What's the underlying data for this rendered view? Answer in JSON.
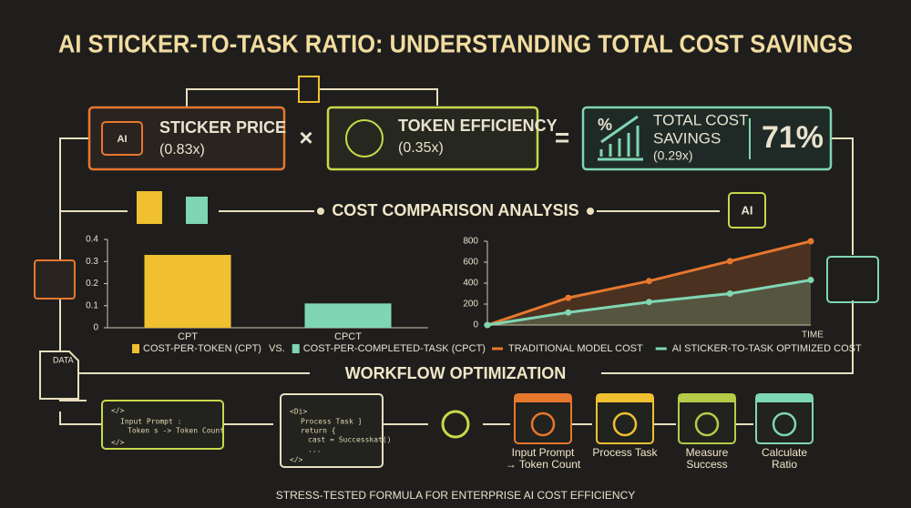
{
  "title": "AI STICKER-TO-TASK RATIO: UNDERSTANDING TOTAL COST SAVINGS",
  "formula": {
    "sticker": {
      "icon": "AI",
      "label": "STICKER PRICE",
      "value": "(0.83x)"
    },
    "operator1": "×",
    "token": {
      "label": "TOKEN EFFICIENCY",
      "value": "(0.35x)"
    },
    "operator2": "=",
    "total": {
      "icon": "%",
      "label_lines": [
        "TOTAL COST",
        "SAVINGS"
      ],
      "value": "(0.29x)",
      "percent": "71%"
    }
  },
  "sections": {
    "analysis": "COST COMPARISON ANALYSIS",
    "workflow": "WORKFLOW OPTIMIZATION"
  },
  "side_icons": {
    "chip": "AI",
    "data_doc": "DATA"
  },
  "chart_data": [
    {
      "type": "bar",
      "categories": [
        "CPT",
        "CPCT"
      ],
      "series": [
        {
          "name": "COST-PER-TOKEN (CPT)",
          "color": "#f0c030",
          "values": [
            0.33,
            null
          ]
        },
        {
          "name": "COST-PER-COMPLETED-TASK (CPCT)",
          "color": "#7fd6b4",
          "values": [
            null,
            0.11
          ]
        }
      ],
      "legend_separator": "VS.",
      "ylim": [
        0,
        0.4
      ],
      "yticks": [
        0,
        0.1,
        0.2,
        0.3,
        0.4
      ]
    },
    {
      "type": "line",
      "categories": [
        null,
        null,
        null,
        null,
        null
      ],
      "xlabel": "TIME",
      "series": [
        {
          "name": "TRADITIONAL MODEL COST",
          "color": "#e8772e",
          "values": [
            0,
            260,
            420,
            610,
            800
          ]
        },
        {
          "name": "AI STICKER-TO-TASK OPTIMIZED COST",
          "color": "#7fd6b4",
          "values": [
            0,
            120,
            220,
            300,
            430
          ]
        }
      ],
      "ylim": [
        0,
        800
      ],
      "yticks": [
        0,
        200,
        400,
        600,
        800
      ]
    }
  ],
  "workflow": {
    "code1": [
      "</>",
      "Input Prompt :",
      "Token s -> Token Count",
      "</>"
    ],
    "code2": [
      "<Di>",
      "Process Task ]",
      "return {",
      "cast = Successkat()",
      "...",
      "</>"
    ],
    "steps": [
      {
        "label": [
          "Input Prompt",
          "→ Token Count"
        ],
        "color": "#e8772e"
      },
      {
        "label": [
          "Process Task"
        ],
        "color": "#f0c030"
      },
      {
        "label": [
          "Measure",
          "Success"
        ],
        "color": "#b5cc48"
      },
      {
        "label": [
          "Calculate",
          "Ratio"
        ],
        "color": "#7fd6b4"
      }
    ]
  },
  "footer": "STRESS-TESTED FORMULA FOR ENTERPRISE AI COST EFFICIENCY"
}
